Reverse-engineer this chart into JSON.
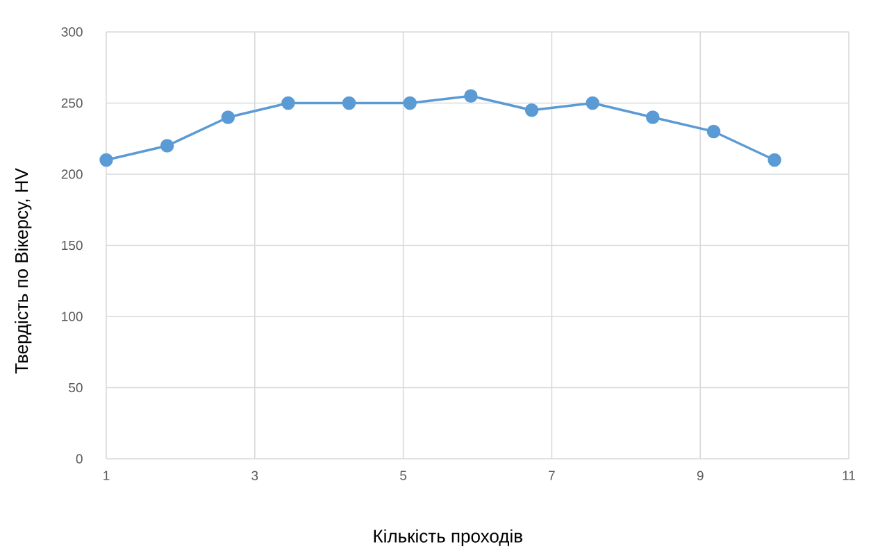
{
  "chart_data": {
    "type": "line",
    "xlabel": "Кількість проходів",
    "ylabel": "Твердість по Вікерсу, HV",
    "x": [
      1,
      1.82,
      2.64,
      3.45,
      4.27,
      5.09,
      5.91,
      6.73,
      7.55,
      8.36,
      9.18,
      10
    ],
    "series": [
      {
        "color": "#5b9bd5",
        "values": [
          210,
          220,
          240,
          250,
          250,
          250,
          255,
          245,
          250,
          240,
          230,
          210
        ]
      }
    ],
    "xlim": [
      1,
      11
    ],
    "xticks": [
      1,
      3,
      5,
      7,
      9,
      11
    ],
    "ylim": [
      0,
      300
    ],
    "yticks": [
      0,
      50,
      100,
      150,
      200,
      250,
      300
    ],
    "grid": true,
    "marker": "circle",
    "line_style": "solid"
  }
}
